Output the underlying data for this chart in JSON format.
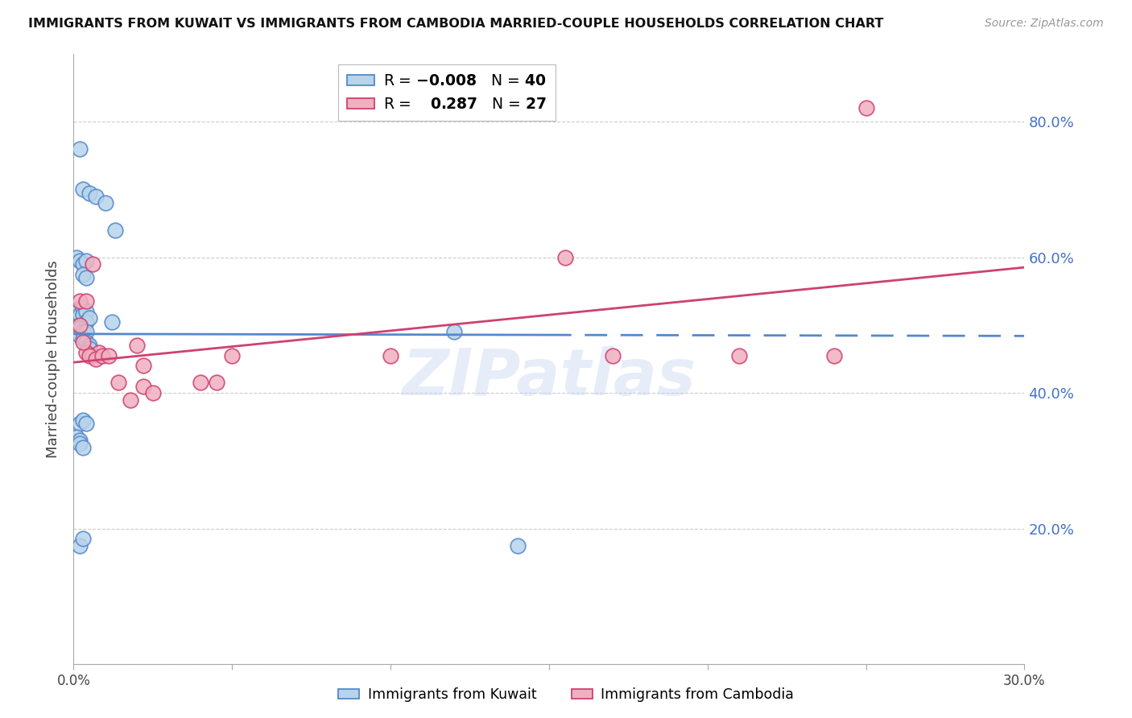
{
  "title": "IMMIGRANTS FROM KUWAIT VS IMMIGRANTS FROM CAMBODIA MARRIED-COUPLE HOUSEHOLDS CORRELATION CHART",
  "source": "Source: ZipAtlas.com",
  "ylabel": "Married-couple Households",
  "xlim": [
    0.0,
    0.3
  ],
  "ylim": [
    0.0,
    0.9
  ],
  "yticks": [
    0.0,
    0.2,
    0.4,
    0.6,
    0.8
  ],
  "xticks": [
    0.0,
    0.05,
    0.1,
    0.15,
    0.2,
    0.25,
    0.3
  ],
  "ytick_labels_right": [
    "",
    "20.0%",
    "40.0%",
    "60.0%",
    "80.0%"
  ],
  "kuwait_R": -0.008,
  "kuwait_N": 40,
  "cambodia_R": 0.287,
  "cambodia_N": 27,
  "kuwait_fill": "#b8d4ea",
  "kuwait_edge": "#5588cc",
  "cambodia_fill": "#f0b0c0",
  "cambodia_edge": "#d04070",
  "kuwait_line_color": "#5588cc",
  "cambodia_line_color": "#d04070",
  "watermark": "ZIPatlas",
  "kuwait_x": [
    0.002,
    0.003,
    0.005,
    0.007,
    0.01,
    0.013,
    0.001,
    0.002,
    0.003,
    0.004,
    0.003,
    0.004,
    0.001,
    0.002,
    0.002,
    0.003,
    0.003,
    0.004,
    0.004,
    0.005,
    0.002,
    0.002,
    0.003,
    0.003,
    0.004,
    0.004,
    0.005,
    0.005,
    0.002,
    0.003,
    0.004,
    0.001,
    0.002,
    0.002,
    0.003,
    0.002,
    0.003,
    0.012,
    0.12,
    0.14
  ],
  "kuwait_y": [
    0.76,
    0.7,
    0.695,
    0.69,
    0.68,
    0.64,
    0.6,
    0.595,
    0.59,
    0.595,
    0.575,
    0.57,
    0.52,
    0.525,
    0.515,
    0.525,
    0.515,
    0.52,
    0.505,
    0.51,
    0.495,
    0.485,
    0.49,
    0.48,
    0.49,
    0.475,
    0.47,
    0.465,
    0.355,
    0.36,
    0.355,
    0.335,
    0.33,
    0.325,
    0.32,
    0.175,
    0.185,
    0.505,
    0.49,
    0.175
  ],
  "cambodia_x": [
    0.002,
    0.004,
    0.006,
    0.002,
    0.004,
    0.006,
    0.008,
    0.003,
    0.005,
    0.007,
    0.009,
    0.011,
    0.014,
    0.018,
    0.02,
    0.022,
    0.025,
    0.04,
    0.045,
    0.1,
    0.155,
    0.21,
    0.24,
    0.25,
    0.022,
    0.05,
    0.17
  ],
  "cambodia_y": [
    0.535,
    0.535,
    0.59,
    0.5,
    0.46,
    0.455,
    0.46,
    0.475,
    0.455,
    0.45,
    0.455,
    0.455,
    0.415,
    0.39,
    0.47,
    0.41,
    0.4,
    0.415,
    0.415,
    0.455,
    0.6,
    0.455,
    0.455,
    0.82,
    0.44,
    0.455,
    0.455
  ]
}
